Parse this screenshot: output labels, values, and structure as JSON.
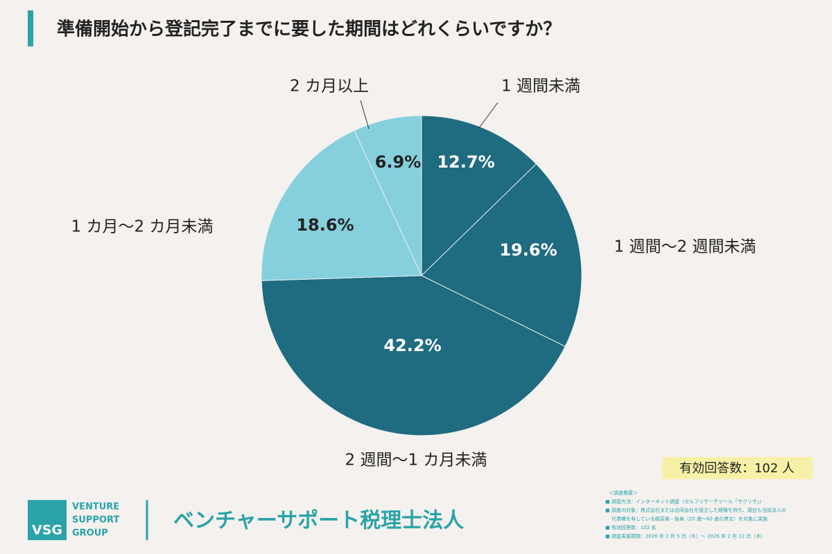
{
  "chart_data": {
    "type": "pie",
    "title": "準備開始から登記完了までに要した期間はどれくらいですか？",
    "categories": [
      "1 週間未満",
      "1 週間〜2 週間未満",
      "2 週間〜1 カ月未満",
      "1 カ月〜2 カ月未満",
      "2 カ月以上"
    ],
    "values": [
      12.7,
      19.6,
      42.2,
      18.6,
      6.9
    ],
    "value_labels": [
      "12.7%",
      "19.6%",
      "42.2%",
      "18.6%",
      "6.9%"
    ],
    "colors": [
      "#1f6b80",
      "#1f6b80",
      "#1f6b80",
      "#86d0de",
      "#86d0de"
    ]
  },
  "respondents": "有効回答数：102 人",
  "logo": {
    "mark": "VSG",
    "lines": [
      "VENTURE",
      "SUPPORT",
      "GROUP"
    ]
  },
  "company": "ベンチャーサポート税理士法人",
  "notes": [
    "＜調査概要＞",
    "■ 調査方法：インターネット調査（セルフリサーチツール「サクリサ」）",
    "■ 調査の対象：株式会社または合同会社を設立した経験を持ち、現在も当該法人の",
    "代表権を有している経営者・役員（20 歳〜60 歳の男女）を対象に実施",
    "■ 有効回答数：102 名",
    "■ 調査実施期間：2026 年 2 月 5 日（木）〜 2026 年 2 月 12 日（木）"
  ]
}
